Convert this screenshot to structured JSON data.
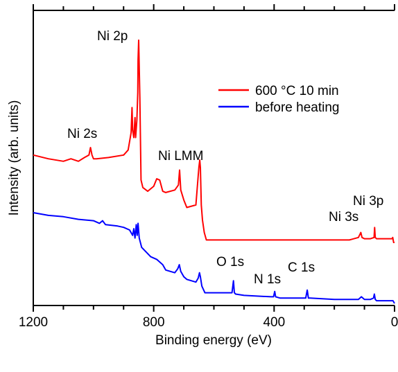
{
  "chart_data": {
    "type": "line",
    "title": "",
    "xlabel": "Binding energy (eV)",
    "ylabel": "Intensity (arb. units)",
    "xlim": [
      1200,
      0
    ],
    "x_reversed": true,
    "x_ticks": [
      1200,
      800,
      400,
      0
    ],
    "x_tick_labels": [
      "1200",
      "800",
      "400",
      "0"
    ],
    "y_tick_labels": false,
    "ylim": [
      0,
      100
    ],
    "legend": {
      "placement": "top-right"
    },
    "series": [
      {
        "name": "600 °C 10 min",
        "color": "#ff0000",
        "x": [
          1200,
          1150,
          1100,
          1075,
          1050,
          1030,
          1015,
          1010,
          1005,
          1000,
          990,
          950,
          900,
          885,
          875,
          872,
          870,
          866,
          862,
          860,
          856,
          853,
          852,
          850,
          846,
          842,
          836,
          820,
          800,
          790,
          780,
          770,
          760,
          730,
          718,
          714,
          710,
          700,
          690,
          660,
          650,
          647,
          645,
          642,
          638,
          632,
          625,
          600,
          500,
          400,
          300,
          200,
          150,
          120,
          112,
          108,
          100,
          80,
          68,
          66,
          64,
          60,
          50,
          20,
          8,
          6,
          3,
          0
        ],
        "y": [
          54,
          52.5,
          51.5,
          52.5,
          51.5,
          53,
          54,
          57,
          54,
          52.5,
          52.5,
          53,
          54,
          56,
          63,
          73,
          64,
          61,
          69,
          61,
          68,
          79,
          92,
          100,
          77,
          44,
          41,
          39.5,
          41.5,
          44.5,
          44,
          39.5,
          39,
          40,
          42,
          48,
          40,
          36,
          33,
          34,
          49,
          52,
          49,
          34,
          28,
          23,
          20,
          20,
          20,
          20,
          20,
          20,
          20,
          21,
          23,
          21,
          20.5,
          20.5,
          21,
          25,
          21,
          20.5,
          20.5,
          20.5,
          20.5,
          21,
          19,
          19
        ]
      },
      {
        "name": "before heating",
        "color": "#0000ff",
        "x": [
          1200,
          1150,
          1100,
          1050,
          1000,
          980,
          970,
          960,
          920,
          900,
          880,
          870,
          866,
          862,
          858,
          855,
          852,
          848,
          840,
          810,
          790,
          770,
          760,
          730,
          720,
          715,
          710,
          700,
          690,
          660,
          652,
          648,
          645,
          640,
          630,
          600,
          540,
          535,
          532,
          528,
          500,
          410,
          402,
          398,
          395,
          380,
          300,
          295,
          290,
          286,
          280,
          200,
          120,
          110,
          100,
          80,
          70,
          67,
          64,
          60,
          50,
          20,
          5,
          0
        ],
        "y": [
          33,
          32,
          31.5,
          30.5,
          30,
          29,
          30,
          28.5,
          28,
          27.5,
          26.5,
          24.5,
          27,
          23.5,
          28.5,
          24.5,
          29,
          23.5,
          20,
          16.5,
          15.5,
          13.5,
          11.5,
          10.5,
          12,
          13.5,
          11,
          9,
          8,
          7,
          8.5,
          10.5,
          9,
          5.5,
          3,
          3,
          3,
          7.5,
          3,
          2.5,
          2,
          1.5,
          1.5,
          3.5,
          1.5,
          1,
          1,
          1,
          4,
          1,
          1,
          0.5,
          0.5,
          1.5,
          0.5,
          0.5,
          1,
          2.5,
          0.5,
          0,
          0,
          0,
          0,
          -1
        ]
      }
    ],
    "annotations": [
      {
        "text": "Ni 2p"
      },
      {
        "text": "Ni 2s"
      },
      {
        "text": "Ni LMM"
      },
      {
        "text": "Ni 3p"
      },
      {
        "text": "Ni 3s"
      },
      {
        "text": "O 1s"
      },
      {
        "text": "N 1s"
      },
      {
        "text": "C 1s"
      }
    ]
  }
}
